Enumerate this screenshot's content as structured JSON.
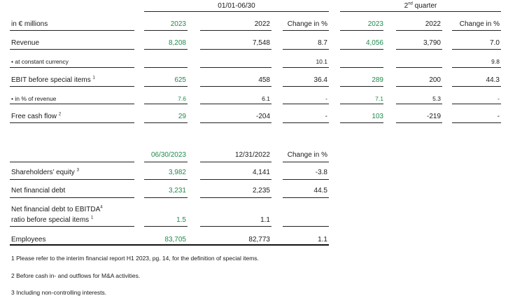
{
  "period_header_h1": "01/01-06/30",
  "period_header_q2_sup": "nd",
  "period_header_q2_prefix": "2",
  "period_header_q2_rest": " quarter",
  "unit_label": "in € millions",
  "columns": {
    "h1_2023": "2023",
    "h1_2022": "2022",
    "h1_change": "Change in %",
    "q2_2023": "2023",
    "q2_2022": "2022",
    "q2_change": "Change in %"
  },
  "rows": [
    {
      "label": "Revenue",
      "sup": "",
      "h1_2023": "8,208",
      "h1_2022": "7,548",
      "h1_change": "8.7",
      "q2_2023": "4,056",
      "q2_2022": "3,790",
      "q2_change": "7.0"
    },
    {
      "label": "• at constant currency",
      "sup": "",
      "h1_2023": "",
      "h1_2022": "",
      "h1_change": "10.1",
      "q2_2023": "",
      "q2_2022": "",
      "q2_change": "9.8"
    },
    {
      "label": "EBIT before special items ",
      "sup": "1",
      "h1_2023": "625",
      "h1_2022": "458",
      "h1_change": "36.4",
      "q2_2023": "289",
      "q2_2022": "200",
      "q2_change": "44.3"
    },
    {
      "label": "• in % of revenue",
      "sup": "",
      "h1_2023": "7.6",
      "h1_2022": "6.1",
      "h1_change": "-",
      "q2_2023": "7.1",
      "q2_2022": "5.3",
      "q2_change": "-"
    },
    {
      "label": "Free cash flow ",
      "sup": "2",
      "h1_2023": "29",
      "h1_2022": "-204",
      "h1_change": "-",
      "q2_2023": "103",
      "q2_2022": "-219",
      "q2_change": "-"
    }
  ],
  "balance_columns": {
    "date_2023": "06/30/2023",
    "date_2022": "12/31/2022",
    "change": "Change in %"
  },
  "balance_rows": [
    {
      "label": "Shareholders’ equity ",
      "sup": "3",
      "v2023": "3,982",
      "v2022": "4,141",
      "change": "-3.8"
    },
    {
      "label": "Net financial debt",
      "sup": "",
      "v2023": "3,231",
      "v2022": "2,235",
      "change": "44.5"
    },
    {
      "label_line1": "Net financial debt to EBITDA",
      "sup1": "4",
      "label_line2": "ratio before special items ",
      "sup2": "1",
      "v2023": "1.5",
      "v2022": "1.1",
      "change": ""
    },
    {
      "label": "Employees",
      "sup": "",
      "v2023": "83,705",
      "v2022": "82,773",
      "change": "1.1"
    }
  ],
  "footnotes": [
    "1 Please refer to the interim financial report H1 2023, pg. 14, for the definition of special items.",
    "2 Before cash in- and outflows for M&A activities.",
    "3 Including non-controlling interests."
  ],
  "colors": {
    "highlight": "#1f8a4c",
    "text": "#1a1a1a",
    "rule": "#222222"
  }
}
